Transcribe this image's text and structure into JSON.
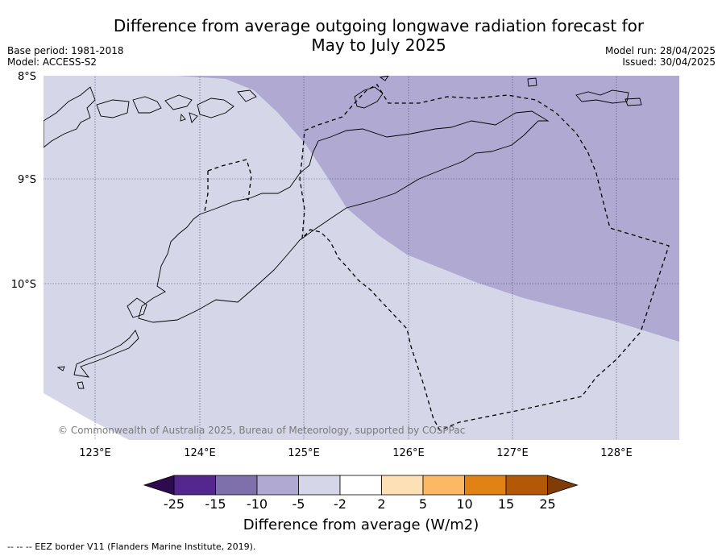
{
  "header": {
    "title_line1": "Difference from average outgoing longwave radiation forecast for",
    "title_line2": "May to July 2025",
    "base_period": "Base period: 1981-2018",
    "model": "Model: ACCESS-S2",
    "model_run": "Model run: 28/04/2025",
    "issued": "Issued: 30/04/2025"
  },
  "map": {
    "lat_labels": [
      "8°S",
      "9°S",
      "10°S"
    ],
    "lon_labels": [
      "123°E",
      "124°E",
      "125°E",
      "126°E",
      "127°E",
      "128°E"
    ],
    "credit": "© Commonwealth of Australia 2025, Bureau of Meteorology, supported by COSPPac",
    "colors": {
      "light_purple": "#d6d6e9",
      "mid_purple": "#b0aad3",
      "coast": "#000000",
      "grid": "#555577"
    }
  },
  "colorbar": {
    "ticks": [
      "-25",
      "-15",
      "-10",
      "-5",
      "-2",
      "2",
      "5",
      "10",
      "15",
      "25"
    ],
    "colors": [
      "#2d0b4e",
      "#54278f",
      "#7f6fab",
      "#b0aad3",
      "#d6d6e9",
      "#ffffff",
      "#fee0b6",
      "#fdb863",
      "#e08214",
      "#b35806",
      "#7f3b08"
    ],
    "label": "Difference from average (W/m2)"
  },
  "footer": {
    "legend": "--  --  -- EEZ border V11 (Flanders Marine Institute, 2019)."
  }
}
